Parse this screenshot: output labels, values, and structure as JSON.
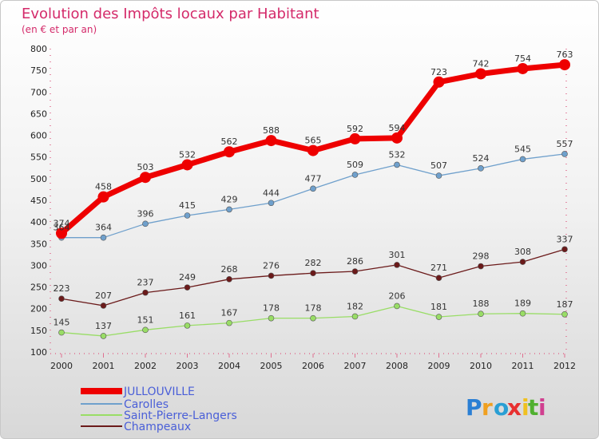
{
  "chart_data": {
    "type": "line",
    "title": "Evolution des Impôts locaux par Habitant",
    "subtitle": "(en € et par an)",
    "xlabel": "",
    "ylabel": "",
    "categories": [
      "2000",
      "2001",
      "2002",
      "2003",
      "2004",
      "2005",
      "2006",
      "2007",
      "2008",
      "2009",
      "2010",
      "2011",
      "2012"
    ],
    "ylim": [
      100,
      800
    ],
    "yticks": [
      100,
      150,
      200,
      250,
      300,
      350,
      400,
      450,
      500,
      550,
      600,
      650,
      700,
      750,
      800
    ],
    "grid": false,
    "legend_position": "bottom-left",
    "series": [
      {
        "name": "JULLOUVILLE",
        "color": "#ee0000",
        "width": 7,
        "marker": 7,
        "values": [
          374,
          458,
          503,
          532,
          562,
          588,
          565,
          592,
          594,
          723,
          742,
          754,
          763
        ],
        "labels": [
          "374",
          "458",
          "503",
          "532",
          "562",
          "588",
          "565",
          "592",
          "594",
          "723",
          "742",
          "754",
          "763"
        ]
      },
      {
        "name": "Carolles",
        "color": "#6fa0cc",
        "width": 1.3,
        "marker": 3.5,
        "values": [
          364,
          364,
          396,
          415,
          429,
          444,
          477,
          509,
          532,
          507,
          524,
          545,
          557
        ],
        "labels": [
          "364",
          "364",
          "396",
          "415",
          "429",
          "444",
          "477",
          "509",
          "532",
          "507",
          "524",
          "545",
          "557"
        ]
      },
      {
        "name": "Saint-Pierre-Langers",
        "color": "#99dd66",
        "width": 1.3,
        "marker": 3.5,
        "values": [
          145,
          137,
          151,
          161,
          167,
          178,
          178,
          182,
          206,
          181,
          188,
          189,
          187
        ],
        "labels": [
          "145",
          "137",
          "151",
          "161",
          "167",
          "178",
          "178",
          "182",
          "206",
          "181",
          "188",
          "189",
          "187"
        ]
      },
      {
        "name": "Champeaux",
        "color": "#6b1a1a",
        "width": 1.3,
        "marker": 3.5,
        "values": [
          223,
          207,
          237,
          249,
          268,
          276,
          282,
          286,
          301,
          271,
          298,
          308,
          337
        ],
        "labels": [
          "223",
          "207",
          "237",
          "249",
          "268",
          "276",
          "282",
          "286",
          "301",
          "271",
          "298",
          "308",
          "337"
        ]
      }
    ]
  },
  "logo": {
    "letters": [
      "P",
      "r",
      "o",
      "x",
      "i",
      "t",
      "i"
    ],
    "colors": [
      "#2a7fd4",
      "#f0a020",
      "#2a9fd4",
      "#e83030",
      "#f0c020",
      "#50b030",
      "#d04090"
    ]
  }
}
